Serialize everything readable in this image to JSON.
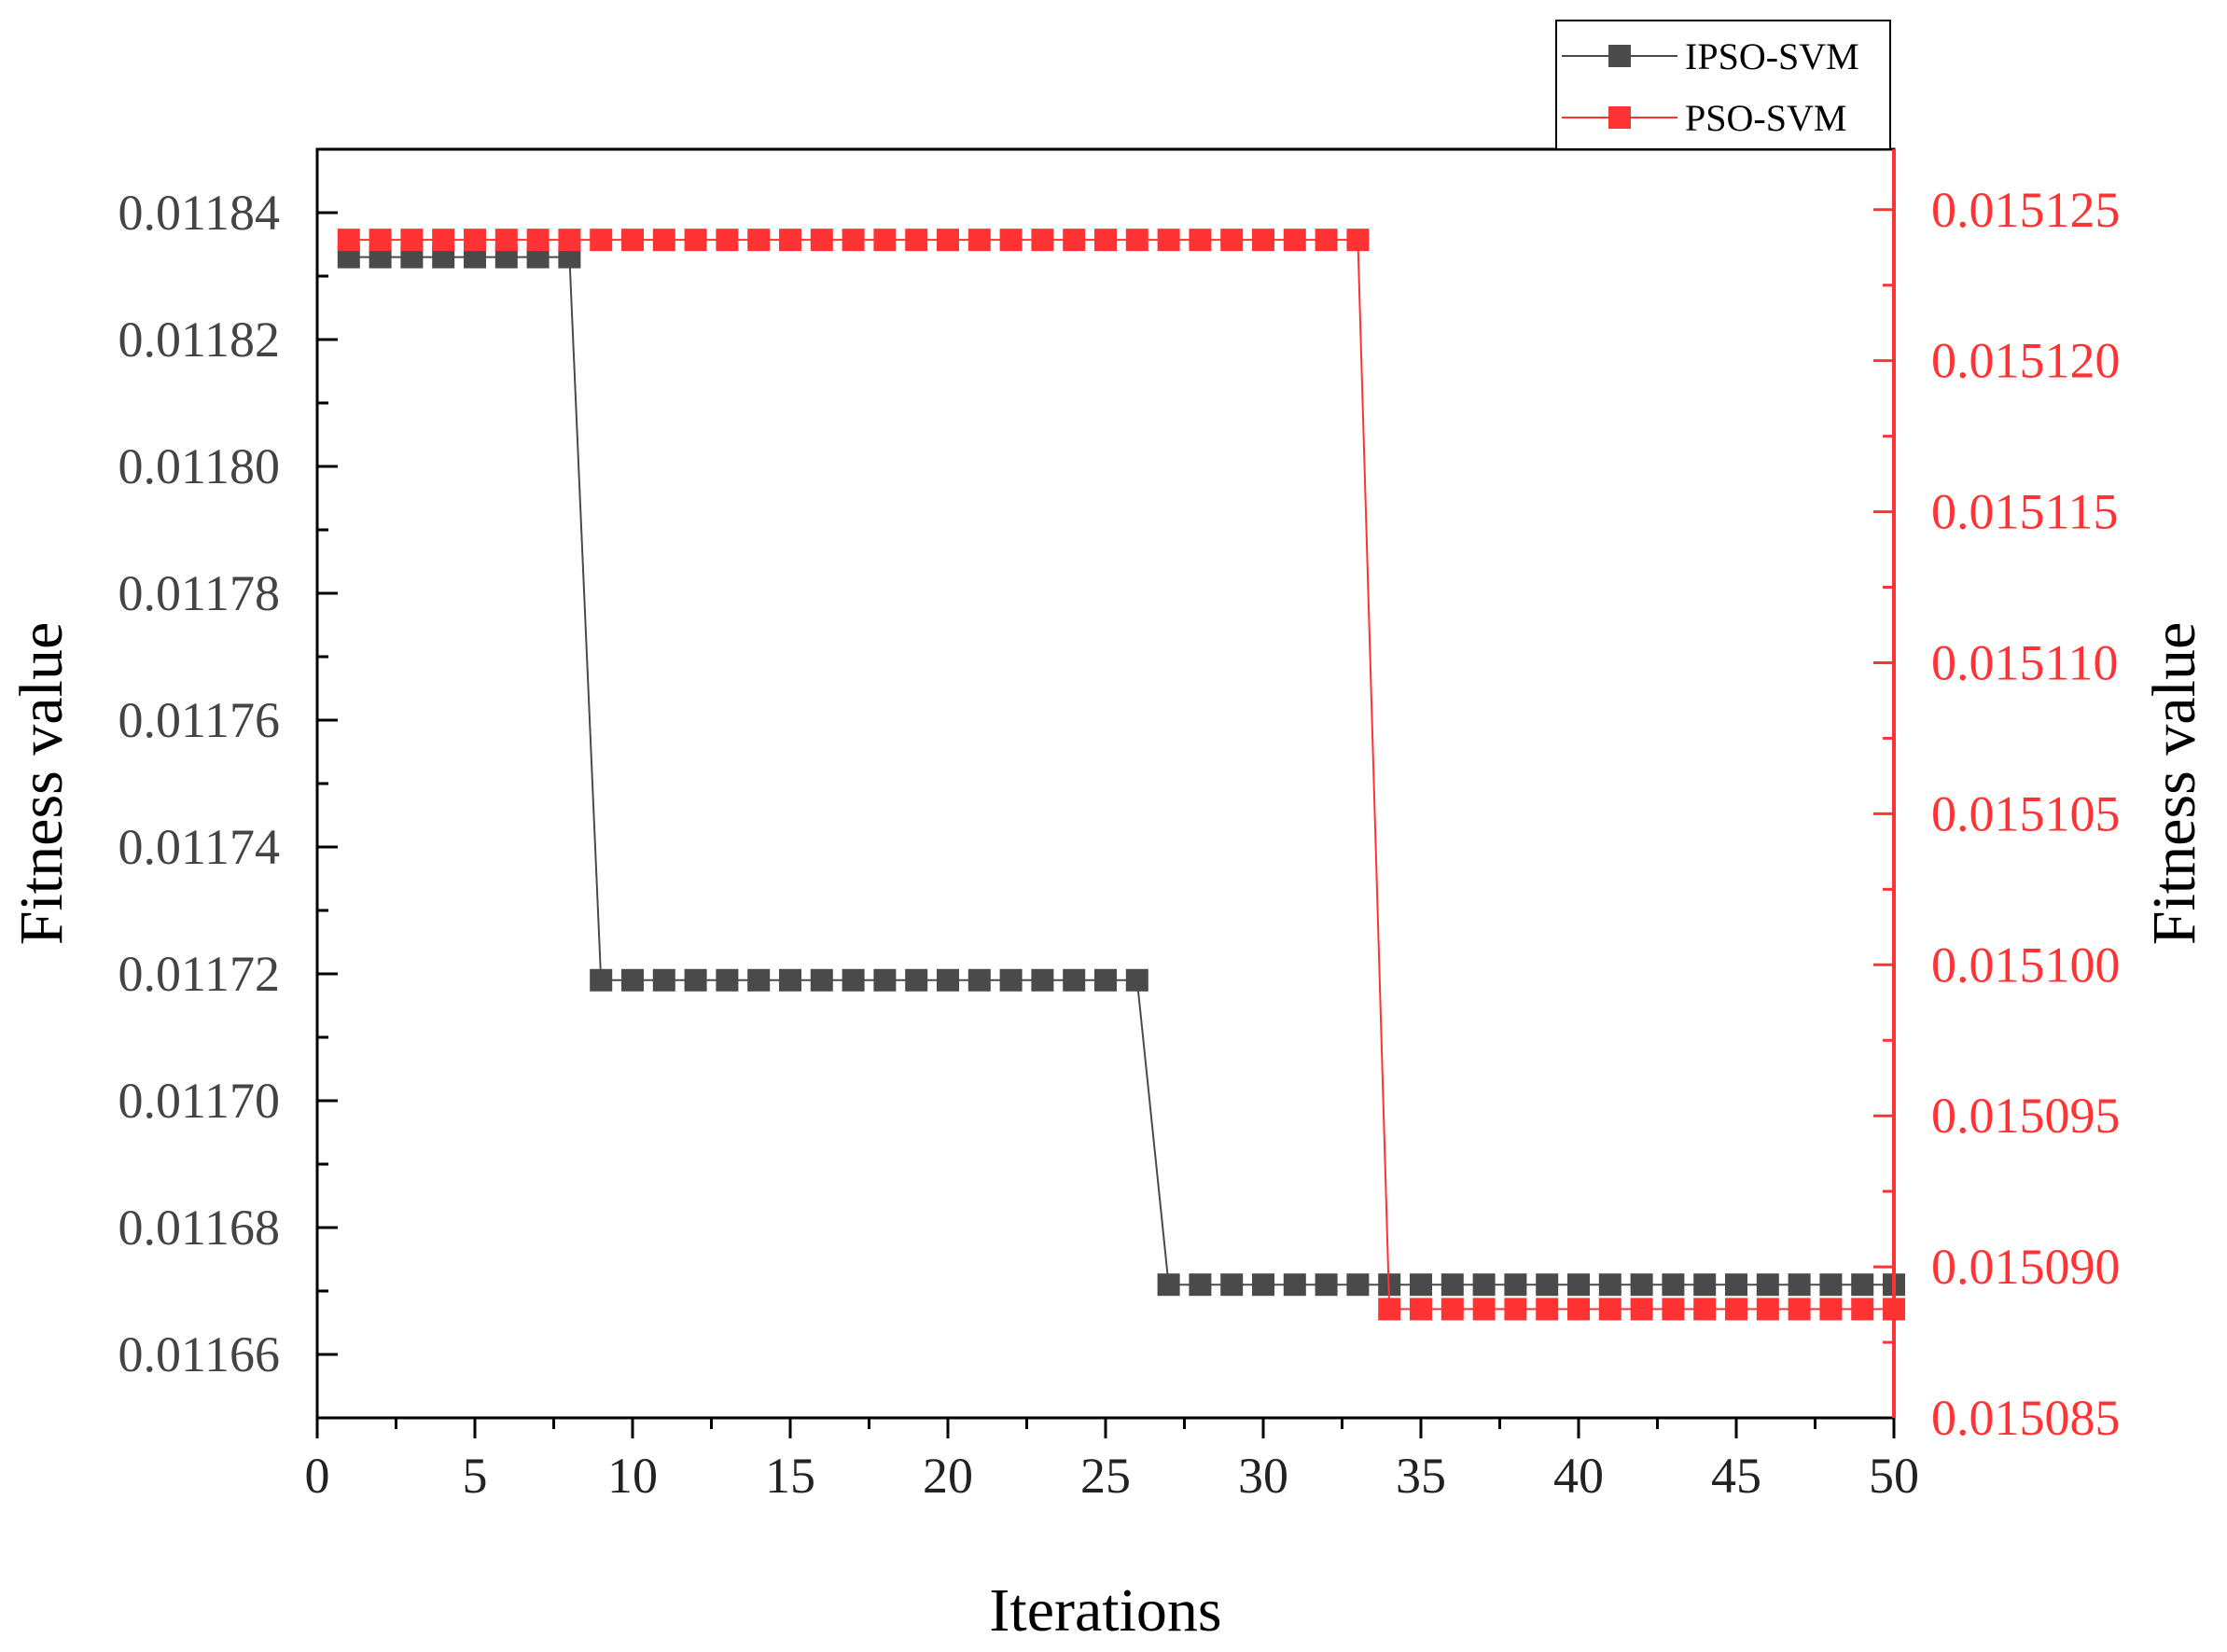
{
  "chart_data": {
    "type": "line",
    "xlabel": "Iterations",
    "ylabel_left": "Fitness value",
    "ylabel_right": "Fitness value",
    "xlim": [
      0,
      50
    ],
    "ylim_left": [
      0.01165,
      0.01185
    ],
    "ylim_right": [
      0.015085,
      0.015127
    ],
    "x_ticks": [
      "0",
      "5",
      "10",
      "15",
      "20",
      "25",
      "30",
      "35",
      "40",
      "45",
      "50"
    ],
    "y_left_ticks": [
      "0.01166",
      "0.01168",
      "0.01170",
      "0.01172",
      "0.01174",
      "0.01176",
      "0.01178",
      "0.01180",
      "0.01182",
      "0.01184"
    ],
    "y_right_ticks": [
      "0.015085",
      "0.015090",
      "0.015095",
      "0.015100",
      "0.015105",
      "0.015110",
      "0.015115",
      "0.015120",
      "0.015125"
    ],
    "legend_position": "top-right, above plot",
    "grid": false,
    "series": [
      {
        "name": "IPSO-SVM",
        "axis": "left",
        "color": "#4a4a4a",
        "x": [
          1,
          2,
          3,
          4,
          5,
          6,
          7,
          8,
          9,
          10,
          11,
          12,
          13,
          14,
          15,
          16,
          17,
          18,
          19,
          20,
          21,
          22,
          23,
          24,
          25,
          26,
          27,
          28,
          29,
          30,
          31,
          32,
          33,
          34,
          35,
          36,
          37,
          38,
          39,
          40,
          41,
          42,
          43,
          44,
          45,
          46,
          47,
          48,
          49,
          50
        ],
        "values": [
          0.011833,
          0.011833,
          0.011833,
          0.011833,
          0.011833,
          0.011833,
          0.011833,
          0.011833,
          0.011719,
          0.011719,
          0.011719,
          0.011719,
          0.011719,
          0.011719,
          0.011719,
          0.011719,
          0.011719,
          0.011719,
          0.011719,
          0.011719,
          0.011719,
          0.011719,
          0.011719,
          0.011719,
          0.011719,
          0.011719,
          0.011671,
          0.011671,
          0.011671,
          0.011671,
          0.011671,
          0.011671,
          0.011671,
          0.011671,
          0.011671,
          0.011671,
          0.011671,
          0.011671,
          0.011671,
          0.011671,
          0.011671,
          0.011671,
          0.011671,
          0.011671,
          0.011671,
          0.011671,
          0.011671,
          0.011671,
          0.011671,
          0.011671
        ]
      },
      {
        "name": "PSO-SVM",
        "axis": "right",
        "color": "#ff3333",
        "x": [
          1,
          2,
          3,
          4,
          5,
          6,
          7,
          8,
          9,
          10,
          11,
          12,
          13,
          14,
          15,
          16,
          17,
          18,
          19,
          20,
          21,
          22,
          23,
          24,
          25,
          26,
          27,
          28,
          29,
          30,
          31,
          32,
          33,
          34,
          35,
          36,
          37,
          38,
          39,
          40,
          41,
          42,
          43,
          44,
          45,
          46,
          47,
          48,
          49,
          50
        ],
        "values": [
          0.015124,
          0.015124,
          0.015124,
          0.015124,
          0.015124,
          0.015124,
          0.015124,
          0.015124,
          0.015124,
          0.015124,
          0.015124,
          0.015124,
          0.015124,
          0.015124,
          0.015124,
          0.015124,
          0.015124,
          0.015124,
          0.015124,
          0.015124,
          0.015124,
          0.015124,
          0.015124,
          0.015124,
          0.015124,
          0.015124,
          0.015124,
          0.015124,
          0.015124,
          0.015124,
          0.015124,
          0.015124,
          0.015124,
          0.0150886,
          0.0150886,
          0.0150886,
          0.0150886,
          0.0150886,
          0.0150886,
          0.0150886,
          0.0150886,
          0.0150886,
          0.0150886,
          0.0150886,
          0.0150886,
          0.0150886,
          0.0150886,
          0.0150886,
          0.0150886,
          0.0150886
        ]
      }
    ]
  }
}
